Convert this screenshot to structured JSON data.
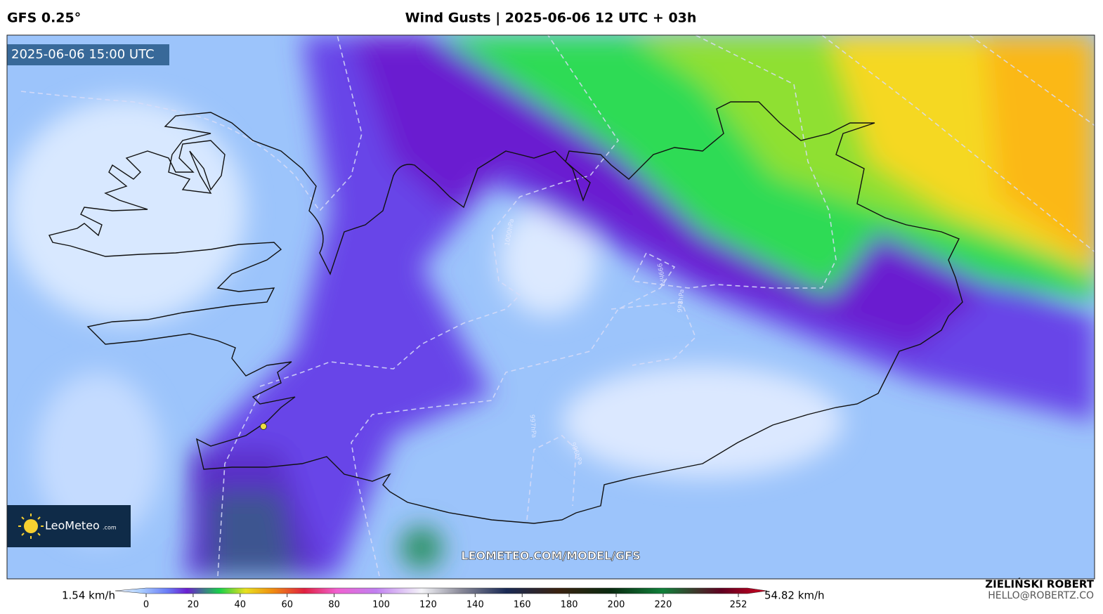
{
  "header": {
    "model": "GFS 0.25°",
    "title": "Wind Gusts | 2025-06-06 12 UTC + 03h"
  },
  "map": {
    "valid_time": "2025-06-06 15:00 UTC",
    "watermark": "LEOMETEO.COM/MODEL/GFS",
    "logo": {
      "name": "LeoMeteo",
      "suffix": ".com"
    },
    "isobar_labels": [
      "1000hPa",
      "999hPa",
      "998hPa",
      "997hPa",
      "996hPa"
    ]
  },
  "colorbar": {
    "min_label": "1.54 km/h",
    "max_label": "54.82 km/h",
    "ticks": [
      0,
      20,
      40,
      60,
      80,
      100,
      120,
      140,
      160,
      180,
      200,
      220,
      252
    ]
  },
  "credit": {
    "author": "ZIELIŃSKI ROBERT",
    "email": "HELLO@ROBERTZ.CO"
  }
}
